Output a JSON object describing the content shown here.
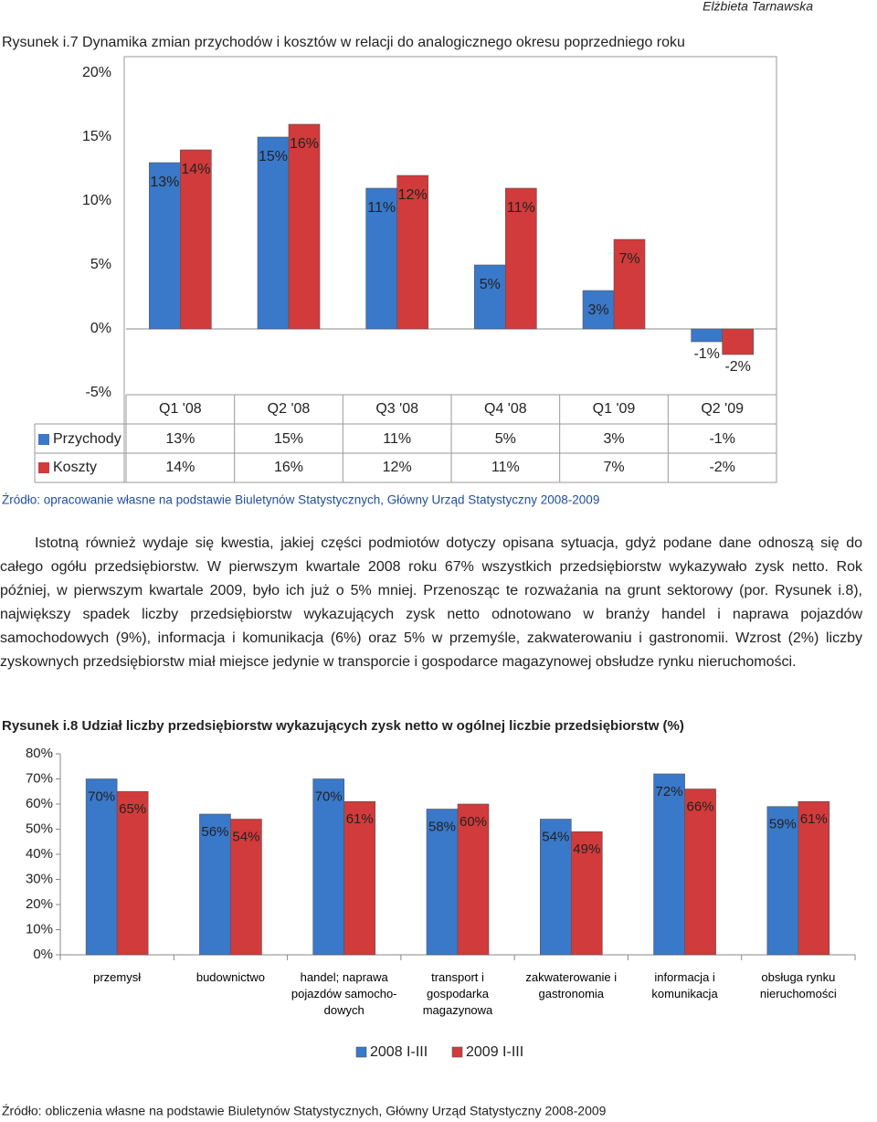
{
  "header": {
    "author": "Elżbieta Tarnawska"
  },
  "chart_data": [
    {
      "type": "bar",
      "title": "Rysunek i.7 Dynamika zmian przychodów i kosztów w relacji do analogicznego okresu poprzedniego roku",
      "categories": [
        "Q1 '08",
        "Q2 '08",
        "Q3 '08",
        "Q4 '08",
        "Q1 '09",
        "Q2 '09"
      ],
      "series": [
        {
          "name": "Przychody",
          "color": "#3a78c9",
          "values": [
            13,
            15,
            11,
            5,
            3,
            -1
          ],
          "value_labels": [
            "13%",
            "15%",
            "11%",
            "5%",
            "3%",
            "-1%"
          ]
        },
        {
          "name": "Koszty",
          "color": "#d13b3b",
          "values": [
            14,
            16,
            12,
            11,
            7,
            -2
          ],
          "value_labels": [
            "14%",
            "16%",
            "12%",
            "11%",
            "7%",
            "-2%"
          ]
        }
      ],
      "ylim": [
        -5,
        20
      ],
      "yticks": [
        {
          "value": -5,
          "label": "-5%"
        },
        {
          "value": 0,
          "label": "0%"
        },
        {
          "value": 5,
          "label": "5%"
        },
        {
          "value": 10,
          "label": "10%"
        },
        {
          "value": 15,
          "label": "15%"
        },
        {
          "value": 20,
          "label": "20%"
        }
      ],
      "data_table": true,
      "source": "Źródło: opracowanie własne na podstawie Biuletynów Statystycznych, Główny Urząd Statystyczny 2008-2009"
    },
    {
      "type": "bar",
      "title": "Rysunek i.8 Udział liczby przedsiębiorstw wykazujących zysk netto w ogólnej liczbie przedsiębiorstw (%)",
      "categories": [
        "przemysł",
        "budownictwo",
        "handel; naprawa\npojazdów samocho-\ndowych",
        "transport i\ngospodarka\nmagazynowa",
        "zakwaterowanie i\ngastronomia",
        "informacja i\nkomunikacja",
        "obsługa rynku\nnieruchomości"
      ],
      "series": [
        {
          "name": "2008 I-III",
          "color": "#3a78c9",
          "values": [
            70,
            56,
            70,
            58,
            54,
            72,
            59
          ],
          "value_labels": [
            "70%",
            "56%",
            "70%",
            "58%",
            "54%",
            "72%",
            "59%"
          ]
        },
        {
          "name": "2009 I-III",
          "color": "#d13b3b",
          "values": [
            65,
            54,
            61,
            60,
            49,
            66,
            61
          ],
          "value_labels": [
            "65%",
            "54%",
            "61%",
            "60%",
            "49%",
            "66%",
            "61%"
          ]
        }
      ],
      "ylim": [
        0,
        80
      ],
      "yticks": [
        {
          "value": 0,
          "label": "0%"
        },
        {
          "value": 10,
          "label": "10%"
        },
        {
          "value": 20,
          "label": "20%"
        },
        {
          "value": 30,
          "label": "30%"
        },
        {
          "value": 40,
          "label": "40%"
        },
        {
          "value": 50,
          "label": "50%"
        },
        {
          "value": 60,
          "label": "60%"
        },
        {
          "value": 70,
          "label": "70%"
        },
        {
          "value": 80,
          "label": "80%"
        }
      ],
      "legend": "bottom",
      "source": "Źródło: obliczenia własne na podstawie Biuletynów Statystycznych, Główny Urząd Statystyczny 2008-2009"
    }
  ],
  "paragraph": "Istotną również wydaje się kwestia, jakiej części podmiotów dotyczy opisana sytuacja, gdyż podane dane odnoszą się do całego ogółu przedsiębiorstw. W pierwszym kwartale 2008 roku 67% wszystkich przedsiębiorstw wykazywało zysk netto. Rok później, w pierwszym kwartale 2009, było ich już o 5% mniej. Przenosząc te rozważania na grunt sektorowy (por. Rysunek i.8), największy spadek liczby przedsiębiorstw wykazujących zysk netto odnotowano w branży handel i naprawa pojazdów samochodowych (9%), informacja i komunikacja (6%) oraz 5% w przemyśle, zakwaterowaniu i gastronomii. Wzrost (2%) liczby zyskownych przedsiębiorstw miał miejsce jedynie w transporcie i gospodarce magazynowej obsłudze rynku nieruchomości."
}
